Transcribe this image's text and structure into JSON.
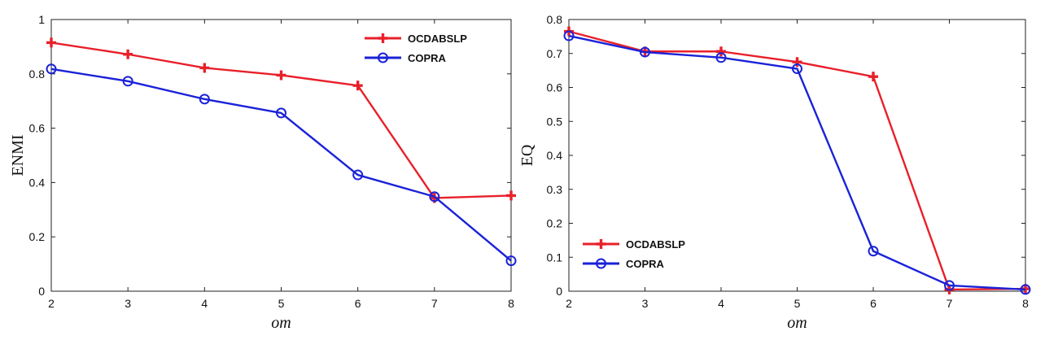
{
  "chart_data": [
    {
      "type": "line",
      "xlabel": "om",
      "ylabel": "ENMI",
      "xlim": [
        2,
        8
      ],
      "ylim": [
        0,
        1
      ],
      "x_ticks": [
        2,
        3,
        4,
        5,
        6,
        7,
        8
      ],
      "y_ticks": [
        0,
        0.2,
        0.4,
        0.6,
        0.8,
        1
      ],
      "x": [
        2,
        3,
        4,
        5,
        6,
        7,
        8
      ],
      "grid": false,
      "legend_position": "top-right",
      "series": [
        {
          "name": "OCDABSLP",
          "color": "#e8202a",
          "marker": "plus",
          "values": [
            0.915,
            0.872,
            0.822,
            0.795,
            0.757,
            0.343,
            0.352
          ]
        },
        {
          "name": "COPRA",
          "color": "#1a22d8",
          "marker": "circle",
          "values": [
            0.818,
            0.773,
            0.707,
            0.656,
            0.428,
            0.348,
            0.112
          ]
        }
      ]
    },
    {
      "type": "line",
      "xlabel": "om",
      "ylabel": "EQ",
      "xlim": [
        2,
        8
      ],
      "ylim": [
        0,
        0.8
      ],
      "x_ticks": [
        2,
        3,
        4,
        5,
        6,
        7,
        8
      ],
      "y_ticks": [
        0,
        0.1,
        0.2,
        0.3,
        0.4,
        0.5,
        0.6,
        0.7,
        0.8
      ],
      "x": [
        2,
        3,
        4,
        5,
        6,
        7,
        8
      ],
      "grid": false,
      "legend_position": "bottom-left",
      "series": [
        {
          "name": "OCDABSLP",
          "color": "#e8202a",
          "marker": "plus",
          "values": [
            0.765,
            0.706,
            0.706,
            0.675,
            0.632,
            0.005,
            0.007
          ]
        },
        {
          "name": "COPRA",
          "color": "#1a22d8",
          "marker": "circle",
          "values": [
            0.752,
            0.704,
            0.688,
            0.655,
            0.118,
            0.017,
            0.005
          ]
        }
      ]
    }
  ]
}
